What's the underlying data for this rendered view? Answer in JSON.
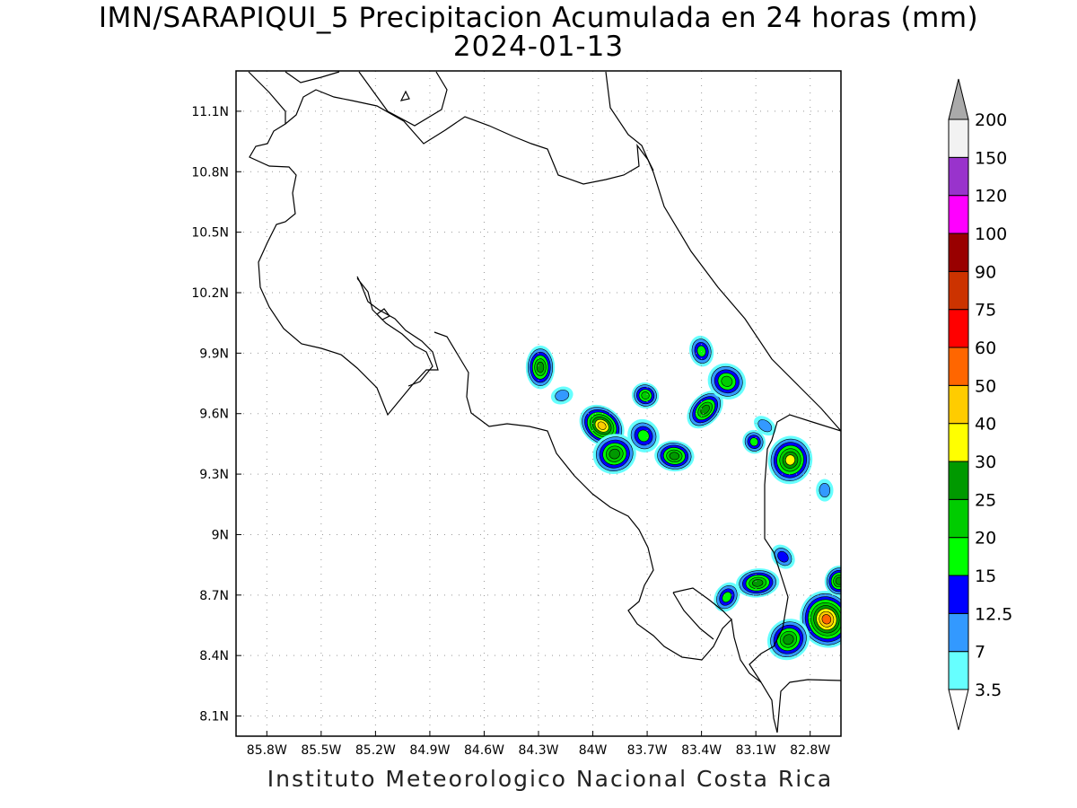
{
  "title": "IMN/SARAPIQUI_5 Precipitacion Acumulada en 24 horas (mm)",
  "date": "2024-01-13",
  "footer": "Instituto Meteorologico Nacional Costa Rica",
  "axes": {
    "lon_ticks": [
      "85.8W",
      "85.5W",
      "85.2W",
      "84.9W",
      "84.6W",
      "84.3W",
      "84W",
      "83.7W",
      "83.4W",
      "83.1W",
      "82.8W"
    ],
    "lat_ticks": [
      "11.1N",
      "10.8N",
      "10.5N",
      "10.2N",
      "9.9N",
      "9.6N",
      "9.3N",
      "9N",
      "8.7N",
      "8.4N",
      "8.1N"
    ],
    "lon_range": [
      -85.97,
      -82.63
    ],
    "lat_range": [
      8.0,
      11.3
    ],
    "grid": "dotted"
  },
  "colorbar": {
    "labels": [
      "3.5",
      "7",
      "12.5",
      "15",
      "20",
      "25",
      "30",
      "40",
      "50",
      "60",
      "75",
      "90",
      "100",
      "120",
      "150",
      "200"
    ],
    "colors": [
      "#ffffff",
      "#66ffff",
      "#3399ff",
      "#0000ff",
      "#00ff00",
      "#00cc00",
      "#009900",
      "#ffff00",
      "#ffcc00",
      "#ff6600",
      "#ff0000",
      "#cc3300",
      "#990000",
      "#ff00ff",
      "#9933cc",
      "#f2f2f2",
      "#aaaaaa"
    ]
  },
  "rain_cells": [
    {
      "lon": -84.29,
      "lat": 9.83,
      "max": 25
    },
    {
      "lon": -83.95,
      "lat": 9.54,
      "max": 40
    },
    {
      "lon": -83.88,
      "lat": 9.4,
      "max": 25
    },
    {
      "lon": -83.71,
      "lat": 9.69,
      "max": 20
    },
    {
      "lon": -83.72,
      "lat": 9.49,
      "max": 15
    },
    {
      "lon": -83.55,
      "lat": 9.39,
      "max": 25
    },
    {
      "lon": -83.38,
      "lat": 9.62,
      "max": 25
    },
    {
      "lon": -83.4,
      "lat": 9.91,
      "max": 15
    },
    {
      "lon": -83.26,
      "lat": 9.76,
      "max": 20
    },
    {
      "lon": -83.11,
      "lat": 9.46,
      "max": 15
    },
    {
      "lon": -82.91,
      "lat": 9.37,
      "max": 30
    },
    {
      "lon": -82.95,
      "lat": 8.89,
      "max": 12.5
    },
    {
      "lon": -83.09,
      "lat": 8.76,
      "max": 25
    },
    {
      "lon": -83.26,
      "lat": 8.69,
      "max": 15
    },
    {
      "lon": -82.71,
      "lat": 8.58,
      "max": 50
    },
    {
      "lon": -82.64,
      "lat": 8.77,
      "max": 25
    },
    {
      "lon": -82.92,
      "lat": 8.48,
      "max": 25
    },
    {
      "lon": -82.72,
      "lat": 9.22,
      "max": 7
    },
    {
      "lon": -83.05,
      "lat": 9.54,
      "max": 7
    },
    {
      "lon": -84.17,
      "lat": 9.69,
      "max": 7
    }
  ]
}
